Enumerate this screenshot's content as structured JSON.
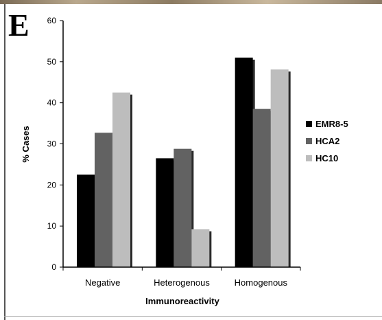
{
  "panel_label": "E",
  "colors": {
    "EMR8-5": "#000000",
    "HCA2": "#626262",
    "HC10": "#bdbdbd",
    "axis": "#000000",
    "shadow": "#2a2a2a"
  },
  "chart_data": {
    "type": "bar",
    "title": "",
    "xlabel": "Immunoreactivity",
    "ylabel": "% Cases",
    "ylim": [
      0,
      60
    ],
    "yticks": [
      0,
      10,
      20,
      30,
      40,
      50,
      60
    ],
    "categories": [
      "Negative",
      "Heterogenous",
      "Homogenous"
    ],
    "series": [
      {
        "name": "EMR8-5",
        "values": [
          22.5,
          26.5,
          51
        ]
      },
      {
        "name": "HCA2",
        "values": [
          32.7,
          28.8,
          38.5
        ]
      },
      {
        "name": "HC10",
        "values": [
          42.5,
          9.2,
          48.1
        ]
      }
    ],
    "grid": false,
    "legend_position": "right"
  }
}
